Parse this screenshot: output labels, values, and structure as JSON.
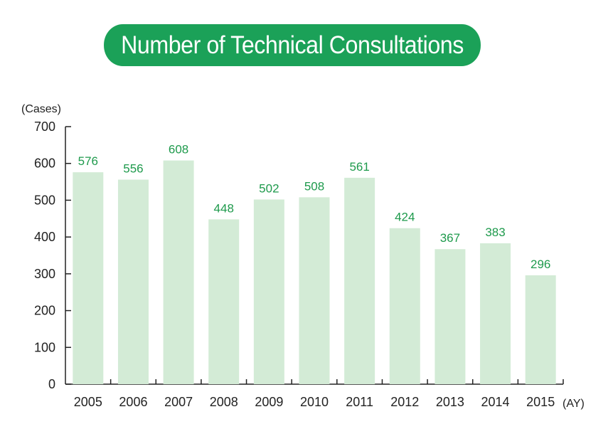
{
  "chart_data": {
    "type": "bar",
    "title": "Number of Technical Consultations",
    "ylabel": "(Cases)",
    "xlabel": "(AY)",
    "categories": [
      "2005",
      "2006",
      "2007",
      "2008",
      "2009",
      "2010",
      "2011",
      "2012",
      "2013",
      "2014",
      "2015"
    ],
    "values": [
      576,
      556,
      608,
      448,
      502,
      508,
      561,
      424,
      367,
      383,
      296
    ],
    "ylim": [
      0,
      700
    ],
    "yticks": [
      0,
      100,
      200,
      300,
      400,
      500,
      600,
      700
    ],
    "grid": false,
    "legend": "none",
    "colors": {
      "bar": "#d3ebd6",
      "value_label": "#1e9a4c",
      "title_bg": "#1ba158",
      "title_text": "#ffffff",
      "axis": "#222222"
    }
  }
}
